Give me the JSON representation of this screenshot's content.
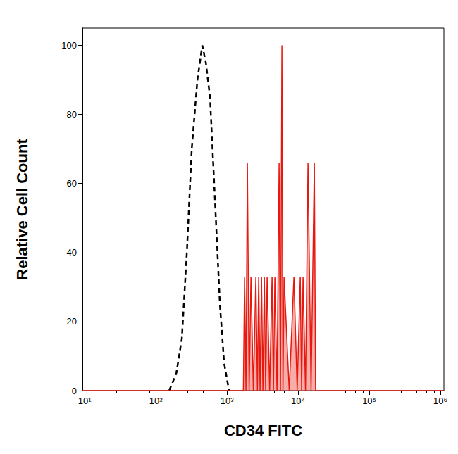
{
  "chart_data": {
    "type": "line",
    "x_label": "CD34 FITC",
    "y_label": "Relative Cell Count",
    "log": "x",
    "grid": false,
    "xlim": [
      9.3,
      1120000
    ],
    "xticks": [
      {
        "value": 10,
        "label": "10¹"
      },
      {
        "value": 100,
        "label": "10²"
      },
      {
        "value": 1000,
        "label": "10³"
      },
      {
        "value": 10000,
        "label": "10⁴"
      },
      {
        "value": 100000,
        "label": "10⁵"
      },
      {
        "value": 1000000,
        "label": "10⁶"
      }
    ],
    "ylim": [
      0,
      105
    ],
    "yticks": [
      0,
      20,
      40,
      60,
      80,
      100
    ],
    "series": [
      {
        "color": "#000000",
        "line_style": "dashed",
        "x": [
          154,
          194,
          232,
          273,
          320,
          384,
          450,
          505,
          578,
          679,
          796,
          912,
          1070
        ],
        "values": [
          0,
          5,
          15,
          40,
          70,
          90,
          100,
          95,
          85,
          55,
          25,
          8,
          0
        ]
      },
      {
        "color": "#e8180f",
        "line_style": "solid",
        "x": [
          9.3,
          1700,
          1768,
          1850,
          1936,
          2050,
          2173,
          2350,
          2548,
          2680,
          2791,
          2920,
          3058,
          3200,
          3350,
          3500,
          3666,
          3980,
          4303,
          4500,
          4713,
          5050,
          5405,
          5650,
          5918,
          6120,
          6340,
          7500,
          8730,
          9700,
          10720,
          11200,
          11730,
          12700,
          13770,
          15200,
          16910,
          17600,
          1120000
        ],
        "values": [
          0,
          0,
          33,
          0,
          66,
          0,
          33,
          0,
          33,
          0,
          33,
          0,
          33,
          0,
          33,
          0,
          33,
          0,
          33,
          0,
          33,
          0,
          66,
          0,
          100,
          0,
          33,
          0,
          33,
          0,
          33,
          0,
          33,
          0,
          66,
          0,
          66,
          0,
          0
        ]
      }
    ]
  }
}
